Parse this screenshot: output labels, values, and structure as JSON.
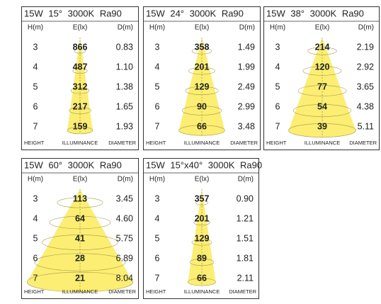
{
  "panels": [
    {
      "title": "15W 15° 3000K Ra90",
      "headers": [
        "H(m)",
        "E(lx)",
        "D(m)"
      ],
      "rows": [
        [
          3,
          866,
          "0.83"
        ],
        [
          4,
          487,
          "1.10"
        ],
        [
          5,
          312,
          "1.38"
        ],
        [
          6,
          217,
          "1.65"
        ],
        [
          7,
          159,
          "1.93"
        ]
      ],
      "footer": [
        "HEIGHT",
        "ILLUMINANCE",
        "DIAMETER"
      ]
    },
    {
      "title": "15W 24° 3000K Ra90",
      "headers": [
        "H(m)",
        "E(lx)",
        "D(m)"
      ],
      "rows": [
        [
          3,
          358,
          "1.49"
        ],
        [
          4,
          201,
          "1.99"
        ],
        [
          5,
          129,
          "2.49"
        ],
        [
          6,
          90,
          "2.99"
        ],
        [
          7,
          66,
          "3.48"
        ]
      ],
      "footer": [
        "HEIGHT",
        "ILLUMINANCE",
        "DIAMETER"
      ]
    },
    {
      "title": "15W 38° 3000K Ra90",
      "headers": [
        "H(m)",
        "E(lx)",
        "D(m)"
      ],
      "rows": [
        [
          3,
          214,
          "2.19"
        ],
        [
          4,
          120,
          "2.92"
        ],
        [
          5,
          77,
          "3.65"
        ],
        [
          6,
          54,
          "4.38"
        ],
        [
          7,
          39,
          "5.11"
        ]
      ],
      "footer": [
        "HEIGHT",
        "ILLUMINANCE",
        "DIAMETER"
      ]
    },
    {
      "title": "15W 60° 3000K Ra90",
      "headers": [
        "H(m)",
        "E(lx)",
        "D(m)"
      ],
      "rows": [
        [
          3,
          113,
          "3.45"
        ],
        [
          4,
          64,
          "4.60"
        ],
        [
          5,
          41,
          "5.75"
        ],
        [
          6,
          28,
          "6.89"
        ],
        [
          7,
          21,
          "8.04"
        ]
      ],
      "footer": [
        "HEIGHT",
        "ILLUMINANCE",
        "DIAMETER"
      ]
    },
    {
      "title": "15W 15°x40° 3000K Ra90",
      "headers": [
        "H(m)",
        "E(lx)",
        "D(m)"
      ],
      "rows": [
        [
          3,
          357,
          "0.90"
        ],
        [
          4,
          201,
          "1.21"
        ],
        [
          5,
          129,
          "1.51"
        ],
        [
          6,
          89,
          "1.81"
        ],
        [
          7,
          66,
          "2.11"
        ]
      ],
      "footer": [
        "HEIGHT",
        "ILLUMINANCE",
        "DIAMETER"
      ]
    }
  ]
}
